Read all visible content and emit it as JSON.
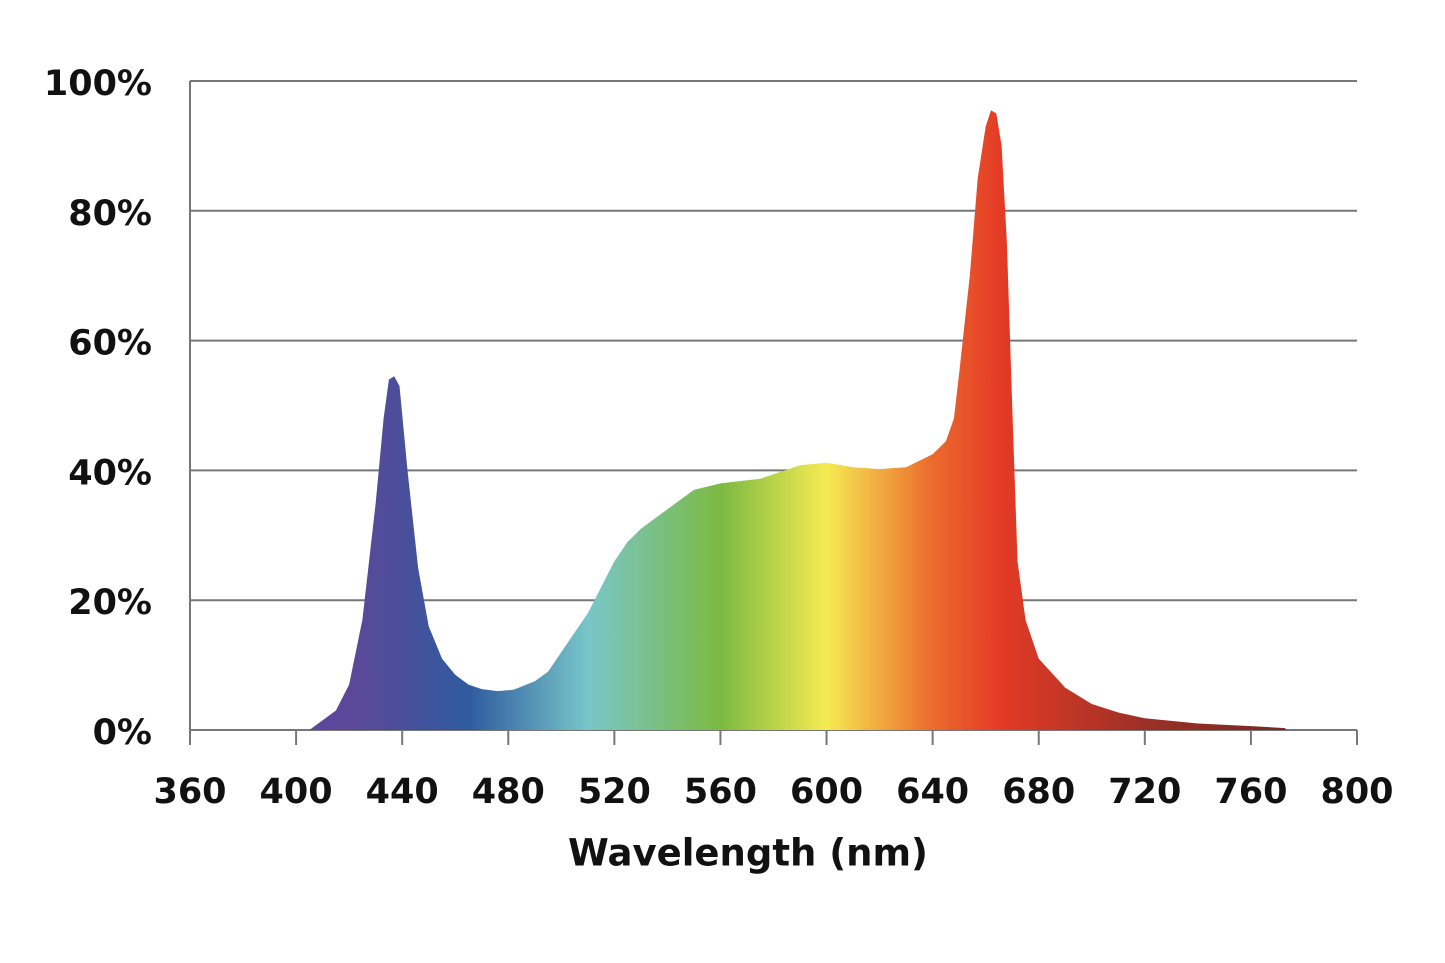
{
  "chart_data": {
    "type": "area",
    "x_label": "Wavelength (nm)",
    "x": [
      405,
      415,
      420,
      425,
      430,
      433,
      435,
      437,
      439,
      442,
      446,
      450,
      455,
      460,
      465,
      470,
      476,
      482,
      490,
      495,
      500,
      510,
      515,
      520,
      525,
      530,
      540,
      550,
      560,
      575,
      590,
      600,
      610,
      620,
      630,
      640,
      645,
      648,
      650,
      654,
      657,
      660,
      662,
      664,
      666,
      668,
      670,
      672,
      675,
      680,
      690,
      700,
      710,
      720,
      740,
      760,
      773
    ],
    "values": [
      0,
      3,
      7,
      17,
      35,
      48,
      54,
      54.5,
      53,
      40,
      25,
      16,
      11,
      8.5,
      7,
      6.3,
      6,
      6.2,
      7.5,
      9,
      12,
      18,
      22,
      26,
      29,
      31,
      34,
      37,
      38,
      38.7,
      40.8,
      41.2,
      40.5,
      40.2,
      40.5,
      42.5,
      44.5,
      48,
      55,
      70,
      85,
      93,
      95.5,
      95,
      90,
      75,
      50,
      26,
      17,
      11,
      6.5,
      4,
      2.7,
      1.8,
      1,
      0.6,
      0.3
    ],
    "xlim": [
      360,
      800
    ],
    "xticks": [
      360,
      400,
      440,
      480,
      520,
      560,
      600,
      640,
      680,
      720,
      760,
      800
    ],
    "ylim": [
      0,
      100
    ],
    "yticks": [
      {
        "value": 0,
        "label": "0%"
      },
      {
        "value": 20,
        "label": "20%"
      },
      {
        "value": 40,
        "label": "40%"
      },
      {
        "value": 60,
        "label": "60%"
      },
      {
        "value": 80,
        "label": "80%"
      },
      {
        "value": 100,
        "label": "100%"
      }
    ],
    "grid": true
  }
}
